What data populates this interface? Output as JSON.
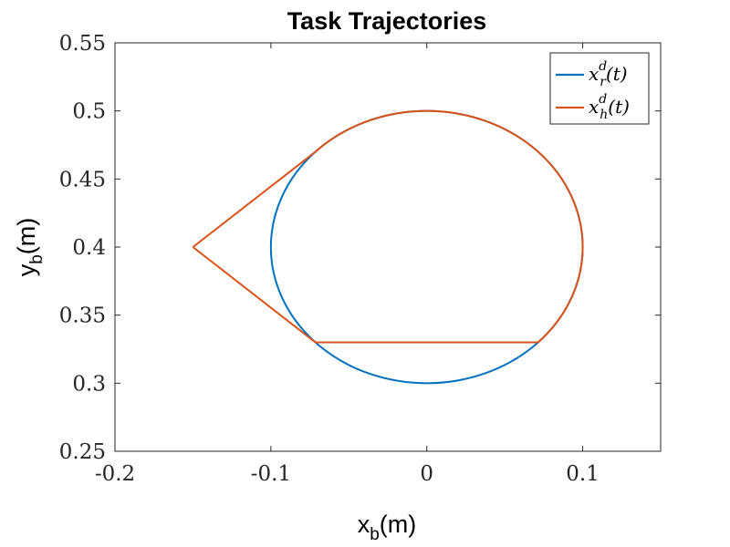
{
  "chart_data": {
    "type": "line",
    "title": "Task Trajectories",
    "xlabel": {
      "main": "x",
      "sub": "b",
      "suffix": "(m)"
    },
    "ylabel": {
      "main": "y",
      "sub": "b",
      "suffix": "(m)"
    },
    "xlim": [
      -0.2,
      0.15
    ],
    "ylim": [
      0.25,
      0.55
    ],
    "xticks": [
      -0.2,
      -0.1,
      0,
      0.1
    ],
    "xtick_labels": [
      "-0.2",
      "-0.1",
      "0",
      "0.1"
    ],
    "yticks": [
      0.25,
      0.3,
      0.35,
      0.4,
      0.45,
      0.5,
      0.55
    ],
    "ytick_labels": [
      "0.25",
      "0.3",
      "0.35",
      "0.4",
      "0.45",
      "0.5",
      "0.55"
    ],
    "grid": false,
    "legend_position": "top-right",
    "series": [
      {
        "name": "x_r^d(t)",
        "name_main": "x",
        "name_sub": "r",
        "name_sup": "d",
        "name_suffix": "(t)",
        "color": "#0072BD",
        "kind": "circle",
        "center": [
          0,
          0.4
        ],
        "radius": 0.1
      },
      {
        "name": "x_h^d(t)",
        "name_main": "x",
        "name_sub": "h",
        "name_sup": "d",
        "name_suffix": "(t)",
        "color": "#D95319",
        "kind": "path",
        "x": [
          -0.15,
          -0.0714,
          0.0,
          0.0714,
          0.1,
          0.0714,
          -0.0714,
          -0.15
        ],
        "y": [
          0.4,
          0.47,
          0.5,
          0.47,
          0.4,
          0.33,
          0.33,
          0.4
        ],
        "arc_segments": [
          [
            1,
            5
          ]
        ]
      }
    ]
  }
}
